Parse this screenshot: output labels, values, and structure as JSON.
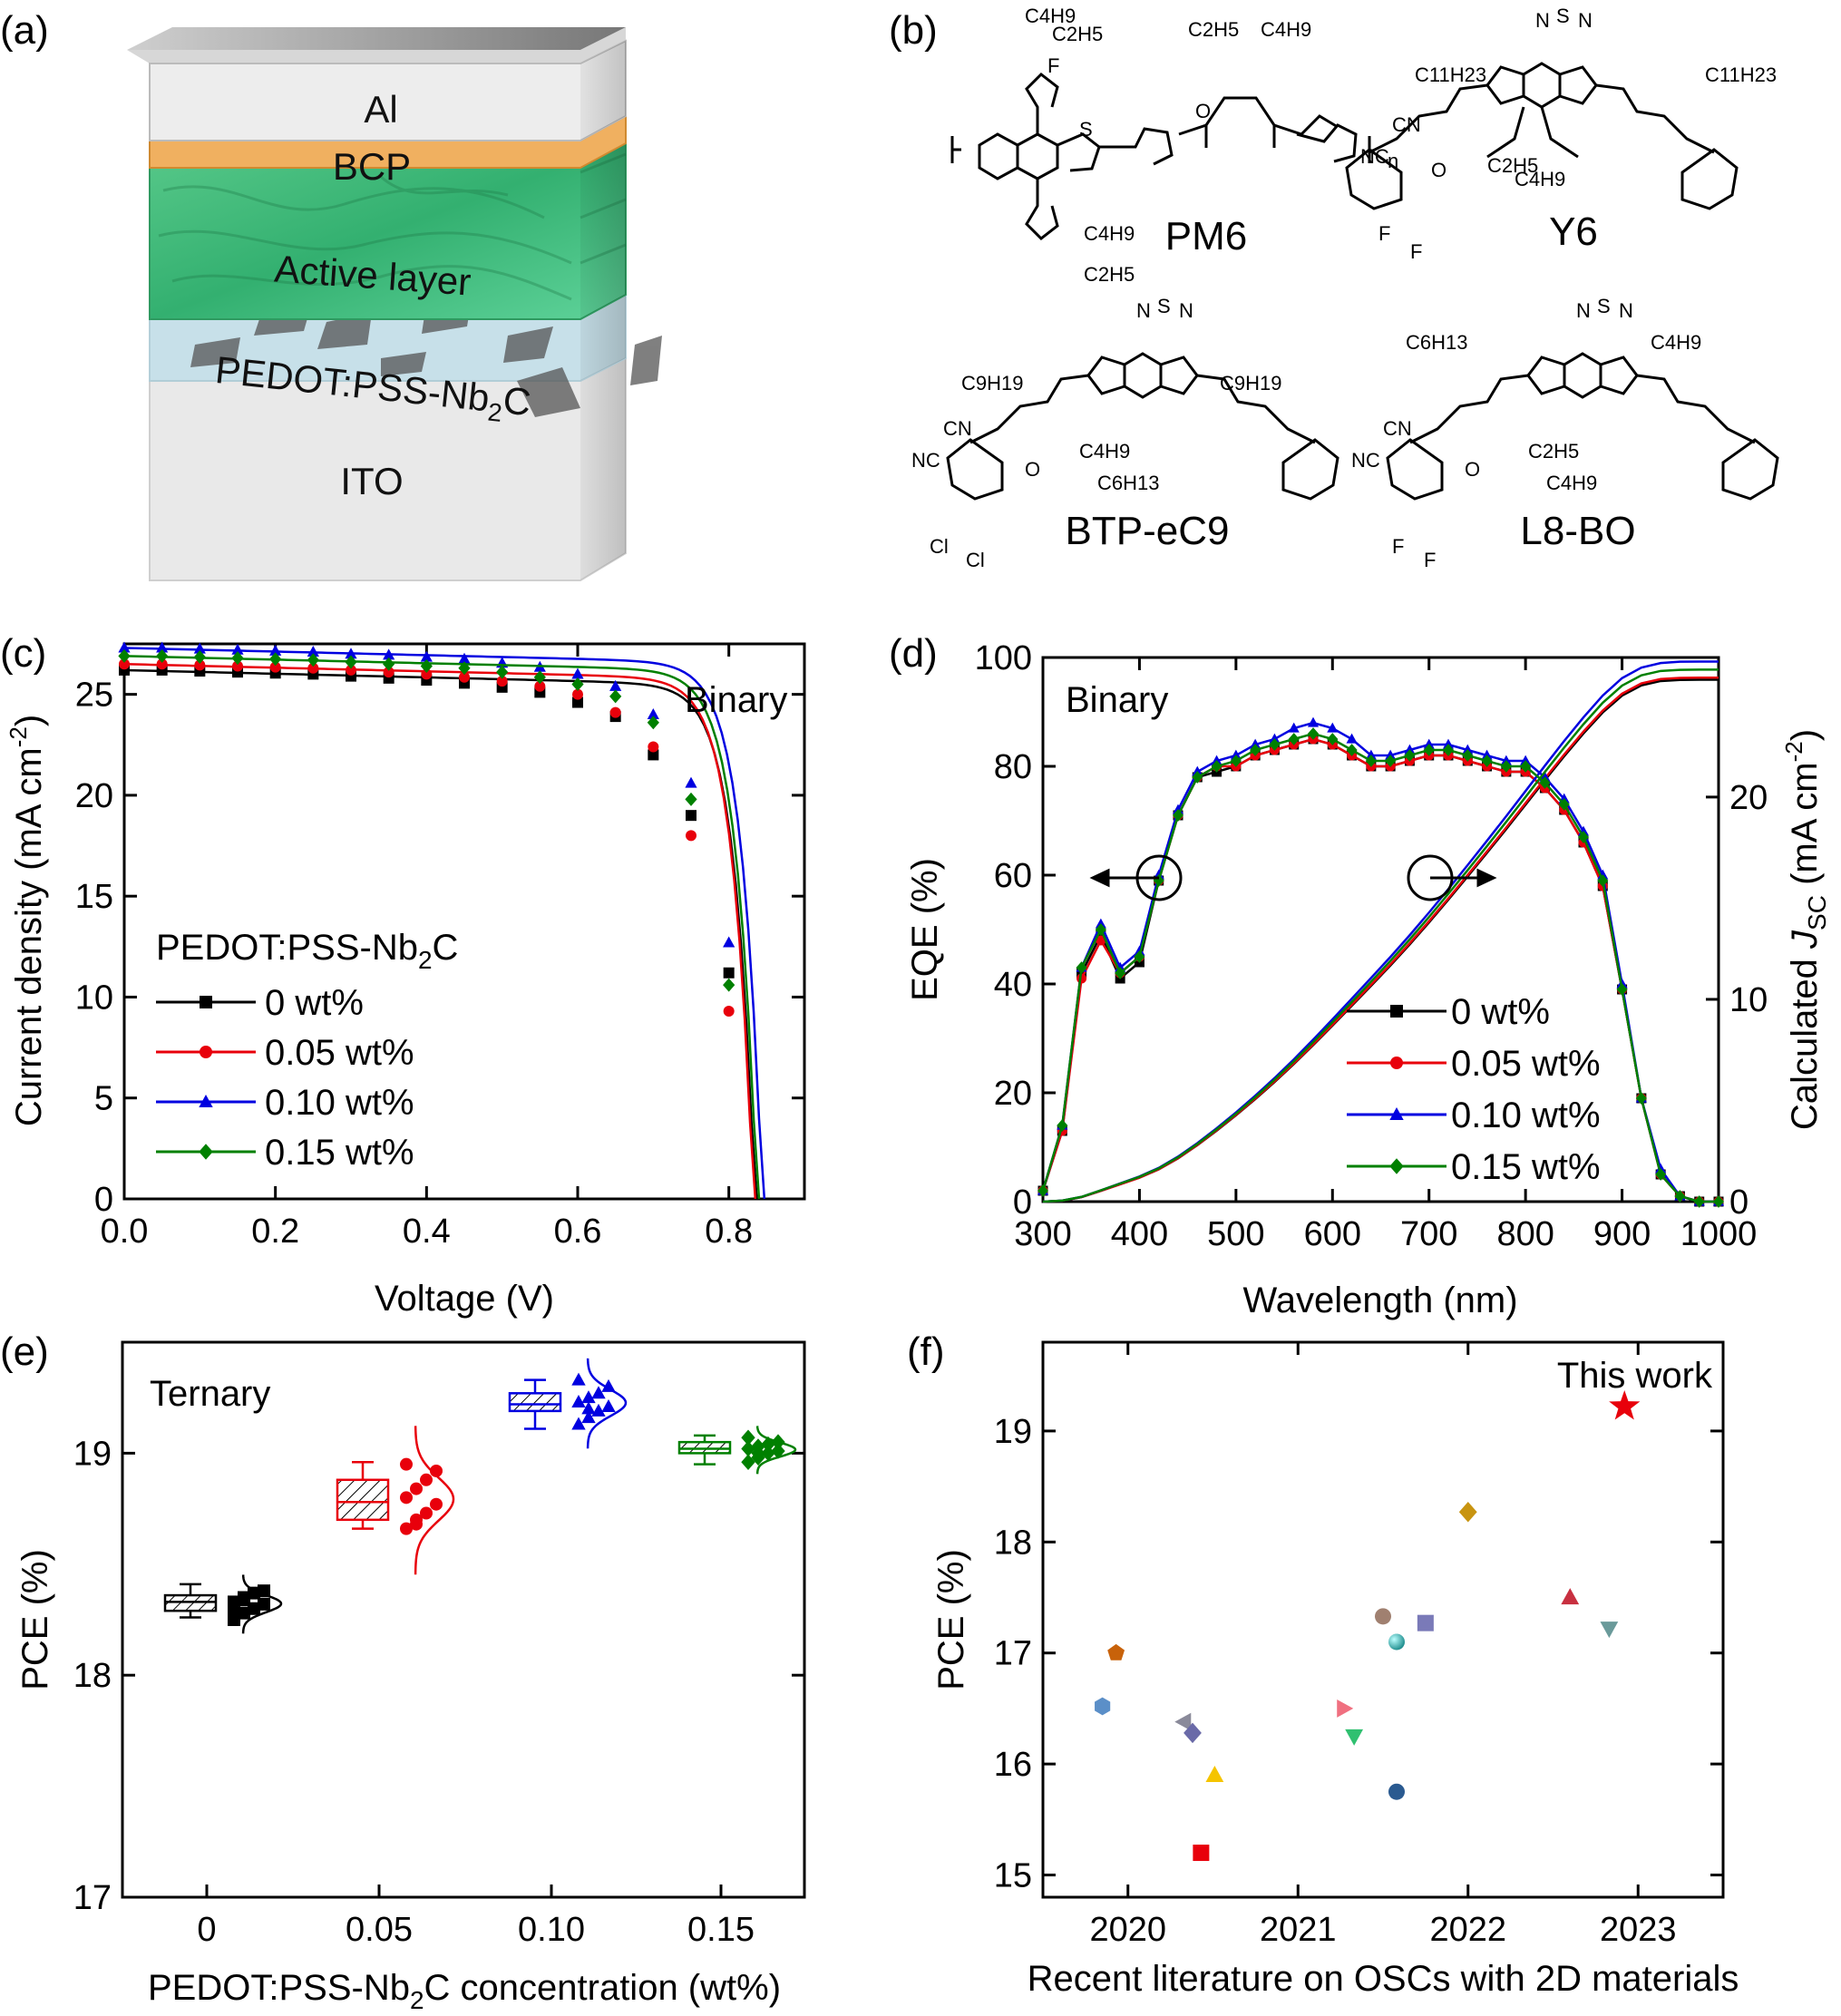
{
  "panel_labels": [
    "(a)",
    "(b)",
    "(c)",
    "(d)",
    "(e)",
    "(f)"
  ],
  "device": {
    "layers": [
      "Al",
      "BCP",
      "Active layer",
      "PEDOT:PSS-Nb",
      "ITO"
    ],
    "nb_sub": "2",
    "nb_suffix": "C"
  },
  "molecules": {
    "names": [
      "PM6",
      "Y6",
      "BTP-eC9",
      "L8-BO"
    ],
    "atom_labels": {
      "pm6": [
        "C4H9",
        "C2H5",
        "F",
        "S",
        "O",
        "n",
        "C2H5",
        "C4H9",
        "C4H9",
        "C2H5"
      ],
      "y6": [
        "N",
        "S",
        "N",
        "C11H23",
        "C11H23",
        "CN",
        "NC",
        "O",
        "F",
        "F",
        "C2H5",
        "C4H9"
      ],
      "btp": [
        "N",
        "S",
        "N",
        "C9H19",
        "C9H19",
        "CN",
        "NC",
        "O",
        "Cl",
        "Cl",
        "C4H9",
        "C6H13"
      ],
      "l8bo": [
        "N",
        "S",
        "N",
        "C6H13",
        "C4H9",
        "CN",
        "NC",
        "O",
        "F",
        "F",
        "C2H5",
        "C4H9"
      ]
    }
  },
  "colors": {
    "s0": "#000000",
    "s1": "#e8000b",
    "s2": "#0000e0",
    "s3": "#008000",
    "active": "#3fbf7f",
    "bcp": "#f0b25e",
    "al": "#d8d8d8",
    "pedot": "#c8e8f0",
    "ito": "#e6e6e6"
  },
  "chart_data": [
    {
      "id": "c",
      "type": "line",
      "annotation": "Binary",
      "xlabel": "Voltage (V)",
      "ylabel": "Current density (mA cm",
      "ylabel_sup": "-2",
      "ylabel_end": ")",
      "xlim": [
        0.0,
        0.9
      ],
      "ylim": [
        0,
        27.5
      ],
      "xticks": [
        "0.0",
        "0.2",
        "0.4",
        "0.6",
        "0.8"
      ],
      "xtick_values": [
        0.0,
        0.2,
        0.4,
        0.6,
        0.8
      ],
      "yticks": [
        "0",
        "5",
        "10",
        "15",
        "20",
        "25"
      ],
      "ytick_values": [
        0,
        5,
        10,
        15,
        20,
        25
      ],
      "legend_title": "PEDOT:PSS-Nb",
      "legend_title_sub": "2",
      "legend_title_end": "C",
      "series": [
        {
          "name": "0 wt%",
          "marker": "square",
          "jsc": 26.2,
          "voc": 0.835,
          "x": [
            0,
            0.05,
            0.1,
            0.15,
            0.2,
            0.25,
            0.3,
            0.35,
            0.4,
            0.45,
            0.5,
            0.55,
            0.6,
            0.65,
            0.7,
            0.75,
            0.8
          ],
          "y": [
            26.2,
            26.2,
            26.15,
            26.1,
            26.05,
            26.0,
            25.9,
            25.8,
            25.7,
            25.55,
            25.35,
            25.1,
            24.6,
            23.9,
            22.0,
            19.0,
            11.2
          ]
        },
        {
          "name": "0.05 wt%",
          "marker": "circle",
          "jsc": 26.5,
          "voc": 0.833,
          "x": [
            0,
            0.05,
            0.1,
            0.15,
            0.2,
            0.25,
            0.3,
            0.35,
            0.4,
            0.45,
            0.5,
            0.55,
            0.6,
            0.65,
            0.7,
            0.75,
            0.8
          ],
          "y": [
            26.5,
            26.5,
            26.45,
            26.4,
            26.35,
            26.3,
            26.2,
            26.1,
            26.0,
            25.85,
            25.65,
            25.4,
            25.0,
            24.1,
            22.4,
            18.0,
            9.3
          ]
        },
        {
          "name": "0.10 wt%",
          "marker": "triangle",
          "jsc": 27.3,
          "voc": 0.845,
          "x": [
            0,
            0.05,
            0.1,
            0.15,
            0.2,
            0.25,
            0.3,
            0.35,
            0.4,
            0.45,
            0.5,
            0.55,
            0.6,
            0.65,
            0.7,
            0.75,
            0.8
          ],
          "y": [
            27.3,
            27.3,
            27.25,
            27.2,
            27.15,
            27.1,
            27.0,
            26.95,
            26.85,
            26.75,
            26.55,
            26.35,
            26.0,
            25.4,
            24.0,
            20.6,
            12.7
          ]
        },
        {
          "name": "0.15 wt%",
          "marker": "diamond",
          "jsc": 26.9,
          "voc": 0.838,
          "x": [
            0,
            0.05,
            0.1,
            0.15,
            0.2,
            0.25,
            0.3,
            0.35,
            0.4,
            0.45,
            0.5,
            0.55,
            0.6,
            0.65,
            0.7,
            0.75,
            0.8
          ],
          "y": [
            26.9,
            26.9,
            26.85,
            26.8,
            26.75,
            26.7,
            26.6,
            26.5,
            26.4,
            26.3,
            26.1,
            25.85,
            25.5,
            24.9,
            23.6,
            19.8,
            10.6
          ]
        }
      ]
    },
    {
      "id": "d",
      "type": "line",
      "annotation": "Binary",
      "xlabel": "Wavelength (nm)",
      "ylabel": "EQE (%)",
      "ylabel_right_prefix": "Calculated ",
      "ylabel_right_j": "J",
      "ylabel_right_sub": "SC",
      "ylabel_right_unit": " (mA cm",
      "ylabel_right_sup": "-2",
      "ylabel_right_end": ")",
      "xlim": [
        300,
        1000
      ],
      "ylim": [
        0,
        100
      ],
      "ylim_right": [
        0,
        26.9
      ],
      "xticks": [
        "300",
        "400",
        "500",
        "600",
        "700",
        "800",
        "900",
        "1000"
      ],
      "xtick_values": [
        300,
        400,
        500,
        600,
        700,
        800,
        900,
        1000
      ],
      "yticks": [
        "0",
        "20",
        "40",
        "60",
        "80",
        "100"
      ],
      "ytick_values": [
        0,
        20,
        40,
        60,
        80,
        100
      ],
      "yticks_right": [
        "0",
        "10",
        "20"
      ],
      "ytick_values_right": [
        0,
        10,
        20
      ],
      "x": [
        300,
        320,
        340,
        360,
        380,
        400,
        420,
        440,
        460,
        480,
        500,
        520,
        540,
        560,
        580,
        600,
        620,
        640,
        660,
        680,
        700,
        720,
        740,
        760,
        780,
        800,
        820,
        840,
        860,
        880,
        900,
        920,
        940,
        960,
        980,
        1000
      ],
      "series": [
        {
          "name": "0 wt%",
          "marker": "square",
          "scale": 1.0,
          "jsc_final": 25.8,
          "eqe": [
            2,
            13,
            42,
            49,
            41,
            44,
            59,
            71,
            78,
            79,
            80,
            82,
            83,
            84,
            85,
            84,
            82,
            80,
            80,
            81,
            82,
            82,
            81,
            80,
            79,
            79,
            76,
            72,
            66,
            58,
            39,
            19,
            5,
            1,
            0,
            0
          ]
        },
        {
          "name": "0.05 wt%",
          "marker": "circle",
          "scale": 1.0,
          "jsc_final": 25.9,
          "eqe": [
            2,
            13,
            41,
            48,
            42,
            45,
            59,
            71,
            78,
            80,
            80,
            82,
            83,
            84,
            85,
            84,
            82,
            80,
            80,
            81,
            82,
            82,
            81,
            80,
            79,
            79,
            76,
            72,
            66,
            58,
            39,
            19,
            5,
            1,
            0,
            0
          ]
        },
        {
          "name": "0.10 wt%",
          "marker": "triangle",
          "scale": 1.0,
          "jsc_final": 26.7,
          "eqe": [
            2,
            14,
            43,
            51,
            43,
            46,
            60,
            72,
            79,
            81,
            82,
            84,
            85,
            87,
            88,
            87,
            85,
            82,
            82,
            83,
            84,
            84,
            83,
            82,
            81,
            81,
            78,
            74,
            68,
            60,
            40,
            19,
            6,
            1,
            0,
            0
          ]
        },
        {
          "name": "0.15 wt%",
          "marker": "diamond",
          "scale": 1.0,
          "jsc_final": 26.3,
          "eqe": [
            2,
            14,
            43,
            50,
            42,
            45,
            59,
            71,
            78,
            80,
            81,
            83,
            84,
            85,
            86,
            85,
            83,
            81,
            81,
            82,
            83,
            83,
            82,
            81,
            80,
            80,
            77,
            73,
            67,
            59,
            39,
            19,
            5,
            1,
            0,
            0
          ]
        }
      ]
    },
    {
      "id": "e",
      "type": "box",
      "annotation": "Ternary",
      "xlabel_prefix": "PEDOT:PSS-Nb",
      "xlabel_sub": "2",
      "xlabel_suffix": "C concentration (wt%)",
      "ylabel": "PCE (%)",
      "ylim": [
        17,
        19.5
      ],
      "yticks": [
        "17",
        "18",
        "19"
      ],
      "ytick_values": [
        17,
        18,
        19
      ],
      "categories": [
        "0",
        "0.05",
        "0.10",
        "0.15"
      ],
      "groups": [
        {
          "name": "0",
          "q1": 18.29,
          "median": 18.33,
          "q3": 18.36,
          "min": 18.26,
          "max": 18.41,
          "points": [
            18.25,
            18.28,
            18.3,
            18.32,
            18.33,
            18.35,
            18.37,
            18.38,
            18.3,
            18.34
          ]
        },
        {
          "name": "0.05",
          "q1": 18.7,
          "median": 18.78,
          "q3": 18.88,
          "min": 18.66,
          "max": 18.96,
          "points": [
            18.66,
            18.7,
            18.73,
            18.77,
            18.8,
            18.84,
            18.88,
            18.92,
            18.95,
            18.68
          ]
        },
        {
          "name": "0.10",
          "q1": 19.19,
          "median": 19.22,
          "q3": 19.27,
          "min": 19.11,
          "max": 19.33,
          "points": [
            19.13,
            19.16,
            19.19,
            19.21,
            19.23,
            19.25,
            19.27,
            19.3,
            19.33,
            19.2
          ]
        },
        {
          "name": "0.15",
          "q1": 19.0,
          "median": 19.02,
          "q3": 19.05,
          "min": 18.95,
          "max": 19.08,
          "points": [
            18.96,
            18.98,
            19.0,
            19.01,
            19.02,
            19.03,
            19.04,
            19.05,
            19.07,
            19.0
          ]
        }
      ]
    },
    {
      "id": "f",
      "type": "scatter",
      "annotation": "This work",
      "xlabel": "Recent literature on OSCs with 2D materials",
      "ylabel": "PCE (%)",
      "xlim": [
        2019.5,
        2023.5
      ],
      "ylim": [
        14.8,
        19.8
      ],
      "xticks": [
        "2020",
        "2021",
        "2022",
        "2023"
      ],
      "xtick_values": [
        2020,
        2021,
        2022,
        2023
      ],
      "yticks": [
        "15",
        "16",
        "17",
        "18",
        "19"
      ],
      "ytick_values": [
        15,
        16,
        17,
        18,
        19
      ],
      "points": [
        {
          "x": 2019.85,
          "y": 16.52,
          "marker": "hexagon",
          "color": "#5b8fc8"
        },
        {
          "x": 2019.93,
          "y": 17.0,
          "marker": "pentagon",
          "color": "#c8620a"
        },
        {
          "x": 2020.33,
          "y": 16.38,
          "marker": "triangle-left",
          "color": "#8a8a9a"
        },
        {
          "x": 2020.38,
          "y": 16.28,
          "marker": "diamond",
          "color": "#6a6aa8"
        },
        {
          "x": 2020.43,
          "y": 15.2,
          "marker": "square",
          "color": "#e8000b"
        },
        {
          "x": 2020.51,
          "y": 15.9,
          "marker": "triangle",
          "color": "#f5c400"
        },
        {
          "x": 2021.27,
          "y": 16.5,
          "marker": "triangle-right",
          "color": "#f07080"
        },
        {
          "x": 2021.33,
          "y": 16.25,
          "marker": "triangle-down",
          "color": "#30c070"
        },
        {
          "x": 2021.5,
          "y": 17.33,
          "marker": "circle",
          "color": "#a08070"
        },
        {
          "x": 2021.58,
          "y": 17.1,
          "marker": "sphere",
          "color": "#20a0a0"
        },
        {
          "x": 2021.58,
          "y": 15.75,
          "marker": "circle",
          "color": "#2a5a90"
        },
        {
          "x": 2021.75,
          "y": 17.27,
          "marker": "square",
          "color": "#7a7ab8"
        },
        {
          "x": 2022.0,
          "y": 18.27,
          "marker": "diamond",
          "color": "#c89410"
        },
        {
          "x": 2022.6,
          "y": 17.5,
          "marker": "triangle",
          "color": "#c83040"
        },
        {
          "x": 2022.83,
          "y": 17.22,
          "marker": "triangle-down",
          "color": "#6a9a9a"
        },
        {
          "x": 2022.92,
          "y": 19.22,
          "marker": "star",
          "color": "#e8000b"
        }
      ]
    }
  ]
}
